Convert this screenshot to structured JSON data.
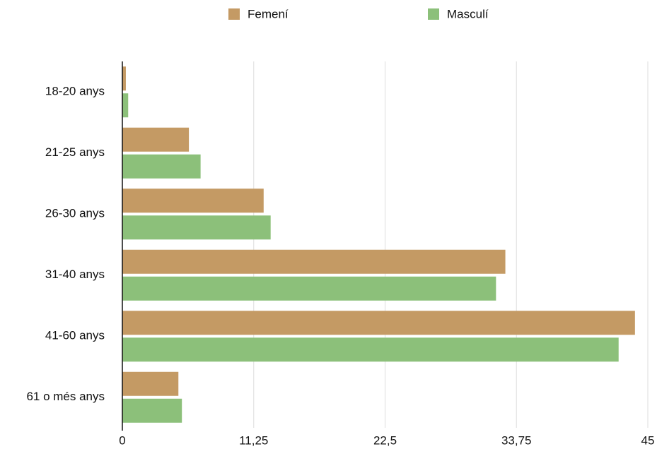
{
  "chart_data": {
    "type": "hbar",
    "categories": [
      "18-20 anys",
      "21-25 anys",
      "26-30 anys",
      "31-40 anys",
      "41-60 anys",
      "61 o més anys"
    ],
    "series": [
      {
        "name": "Femení",
        "color": "#c49a64",
        "values": [
          0.3,
          5.7,
          12.1,
          32.8,
          43.9,
          4.8
        ]
      },
      {
        "name": "Masculí",
        "color": "#8cc07a",
        "values": [
          0.5,
          6.7,
          12.7,
          32.0,
          42.5,
          5.1
        ]
      }
    ],
    "xlim": [
      0,
      45
    ],
    "xticks": [
      0,
      {
        "value": 11.25,
        "label": "11,25"
      },
      {
        "value": 22.5,
        "label": "22,5"
      },
      {
        "value": 33.75,
        "label": "33,75"
      },
      45
    ],
    "grid": true,
    "legend": "top"
  }
}
